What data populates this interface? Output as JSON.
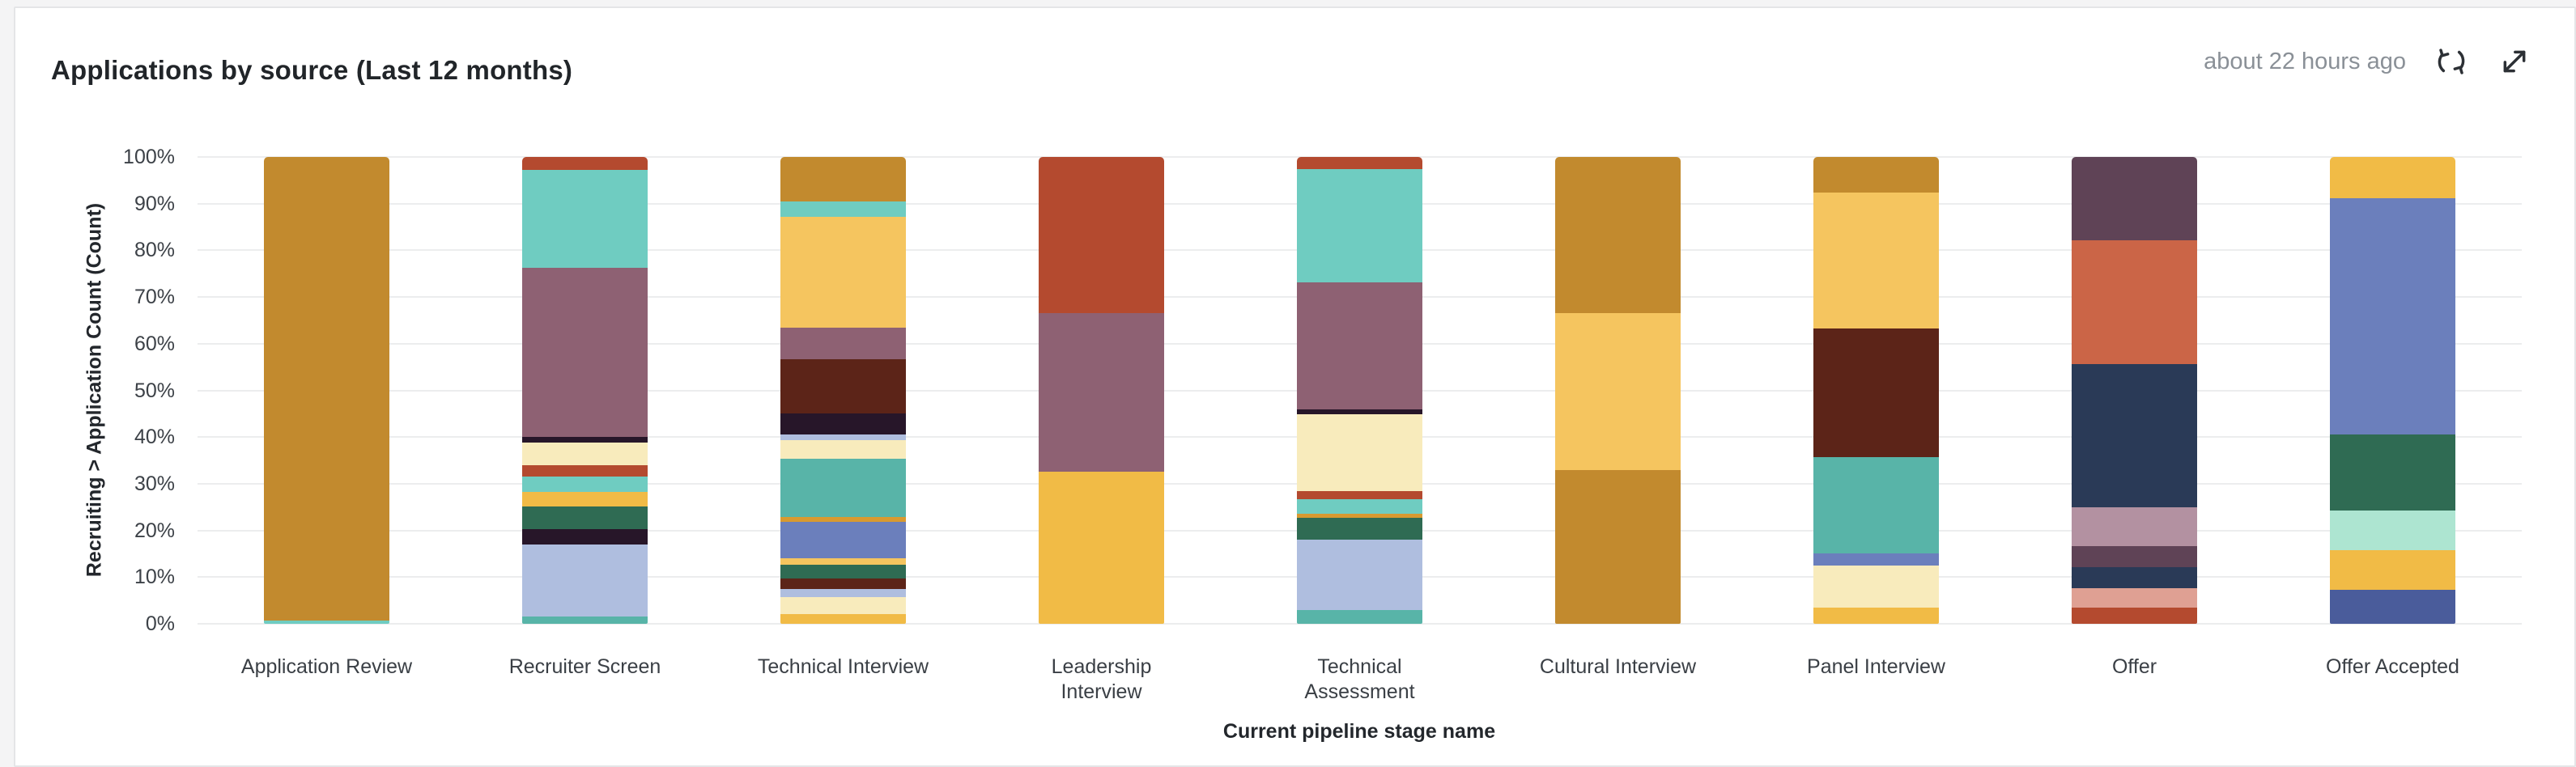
{
  "header": {
    "title": "Applications by source (Last 12 months)",
    "last_updated": "about 22 hours ago",
    "refresh_icon": "circular-refresh-arrows",
    "expand_icon": "diagonal-expand-arrows"
  },
  "chart_data": {
    "type": "bar",
    "stacked": true,
    "normalized": "percent",
    "title": "Applications by source (Last 12 months)",
    "xlabel": "Current pipeline stage name",
    "ylabel": "Recruiting > Application Count (Count)",
    "ylim": [
      0,
      100
    ],
    "ytick_labels": [
      "0%",
      "10%",
      "20%",
      "30%",
      "40%",
      "50%",
      "60%",
      "70%",
      "80%",
      "90%",
      "100%"
    ],
    "grid": true,
    "legend": "none",
    "gridline_color": "#ECEDEE",
    "palette": {
      "gold_dark": "#C28A2E",
      "gold_light": "#F5C55F",
      "amber": "#F1BB46",
      "gold_deep_line": "#D89A30",
      "rust": "#B44A2F",
      "terracotta": "#CB6547",
      "maroon": "#5C2418",
      "cream": "#F8EBBC",
      "teal_light": "#6FCCC1",
      "teal_med": "#58B4A8",
      "mint": "#ADE5D1",
      "dark_green": "#2F6B53",
      "mauve": "#8E6173",
      "mauve_pink": "#B391A1",
      "plum": "#5F4356",
      "plum_dark": "#271629",
      "lavender": "#AFBEDF",
      "periwinkle": "#6B7FBC",
      "navy": "#2A3A57",
      "blue_dark": "#4A5C9B",
      "salmon": "#DFA093"
    },
    "categories": [
      "Application Review",
      "Recruiter Screen",
      "Technical Interview",
      "Leadership Interview",
      "Technical Assessment",
      "Cultural Interview",
      "Panel Interview",
      "Offer",
      "Offer Accepted"
    ],
    "category_label_lines": [
      [
        "Application Review"
      ],
      [
        "Recruiter Screen"
      ],
      [
        "Technical Interview"
      ],
      [
        "Leadership",
        "Interview"
      ],
      [
        "Technical",
        "Assessment"
      ],
      [
        "Cultural Interview"
      ],
      [
        "Panel Interview"
      ],
      [
        "Offer"
      ],
      [
        "Offer Accepted"
      ]
    ],
    "bars": [
      {
        "category": "Application Review",
        "segments_top_to_bottom": [
          {
            "color": "gold_dark",
            "pct": 99.3
          },
          {
            "color": "teal_light",
            "pct": 0.7
          }
        ]
      },
      {
        "category": "Recruiter Screen",
        "segments_top_to_bottom": [
          {
            "color": "rust",
            "pct": 2.7
          },
          {
            "color": "teal_light",
            "pct": 21.0
          },
          {
            "color": "mauve",
            "pct": 36.2
          },
          {
            "color": "plum_dark",
            "pct": 1.2
          },
          {
            "color": "cream",
            "pct": 5.0
          },
          {
            "color": "rust",
            "pct": 2.3
          },
          {
            "color": "teal_light",
            "pct": 3.3
          },
          {
            "color": "amber",
            "pct": 3.1
          },
          {
            "color": "dark_green",
            "pct": 4.9
          },
          {
            "color": "plum_dark",
            "pct": 3.3
          },
          {
            "color": "lavender",
            "pct": 15.5
          },
          {
            "color": "teal_med",
            "pct": 1.5
          }
        ]
      },
      {
        "category": "Technical Interview",
        "segments_top_to_bottom": [
          {
            "color": "gold_dark",
            "pct": 9.5
          },
          {
            "color": "teal_light",
            "pct": 3.3
          },
          {
            "color": "gold_light",
            "pct": 23.8
          },
          {
            "color": "mauve",
            "pct": 6.8
          },
          {
            "color": "maroon",
            "pct": 11.6
          },
          {
            "color": "plum_dark",
            "pct": 4.4
          },
          {
            "color": "lavender",
            "pct": 1.2
          },
          {
            "color": "cream",
            "pct": 4.0
          },
          {
            "color": "teal_med",
            "pct": 12.6
          },
          {
            "color": "gold_deep_line",
            "pct": 1.0
          },
          {
            "color": "periwinkle",
            "pct": 7.8
          },
          {
            "color": "gold_light",
            "pct": 1.3
          },
          {
            "color": "dark_green",
            "pct": 3.0
          },
          {
            "color": "maroon",
            "pct": 2.3
          },
          {
            "color": "lavender",
            "pct": 1.7
          },
          {
            "color": "cream",
            "pct": 3.7
          },
          {
            "color": "amber",
            "pct": 2.0
          }
        ]
      },
      {
        "category": "Leadership Interview",
        "segments_top_to_bottom": [
          {
            "color": "rust",
            "pct": 33.5
          },
          {
            "color": "mauve",
            "pct": 34.0
          },
          {
            "color": "amber",
            "pct": 32.5
          }
        ]
      },
      {
        "category": "Technical Assessment",
        "segments_top_to_bottom": [
          {
            "color": "rust",
            "pct": 2.6
          },
          {
            "color": "teal_light",
            "pct": 24.2
          },
          {
            "color": "mauve",
            "pct": 27.2
          },
          {
            "color": "plum_dark",
            "pct": 1.2
          },
          {
            "color": "cream",
            "pct": 16.3
          },
          {
            "color": "rust",
            "pct": 1.9
          },
          {
            "color": "teal_light",
            "pct": 3.1
          },
          {
            "color": "gold_deep_line",
            "pct": 0.8
          },
          {
            "color": "dark_green",
            "pct": 4.7
          },
          {
            "color": "lavender",
            "pct": 15.1
          },
          {
            "color": "teal_med",
            "pct": 2.9
          }
        ]
      },
      {
        "category": "Cultural Interview",
        "segments_top_to_bottom": [
          {
            "color": "gold_dark",
            "pct": 33.5
          },
          {
            "color": "gold_light",
            "pct": 33.5
          },
          {
            "color": "gold_dark",
            "pct": 33.0
          }
        ]
      },
      {
        "category": "Panel Interview",
        "segments_top_to_bottom": [
          {
            "color": "gold_dark",
            "pct": 7.6
          },
          {
            "color": "gold_light",
            "pct": 29.2
          },
          {
            "color": "maroon",
            "pct": 27.5
          },
          {
            "color": "teal_med",
            "pct": 20.6
          },
          {
            "color": "periwinkle",
            "pct": 2.7
          },
          {
            "color": "cream",
            "pct": 8.9
          },
          {
            "color": "amber",
            "pct": 3.5
          }
        ]
      },
      {
        "category": "Offer",
        "segments_top_to_bottom": [
          {
            "color": "plum",
            "pct": 17.8
          },
          {
            "color": "terracotta",
            "pct": 26.6
          },
          {
            "color": "navy",
            "pct": 30.6
          },
          {
            "color": "mauve_pink",
            "pct": 8.4
          },
          {
            "color": "plum",
            "pct": 4.5
          },
          {
            "color": "navy",
            "pct": 4.4
          },
          {
            "color": "salmon",
            "pct": 4.3
          },
          {
            "color": "rust",
            "pct": 3.4
          }
        ]
      },
      {
        "category": "Offer Accepted",
        "segments_top_to_bottom": [
          {
            "color": "amber",
            "pct": 8.8
          },
          {
            "color": "periwinkle",
            "pct": 50.6
          },
          {
            "color": "dark_green",
            "pct": 16.4
          },
          {
            "color": "mint",
            "pct": 8.5
          },
          {
            "color": "amber",
            "pct": 8.4
          },
          {
            "color": "blue_dark",
            "pct": 7.3
          }
        ]
      }
    ]
  }
}
